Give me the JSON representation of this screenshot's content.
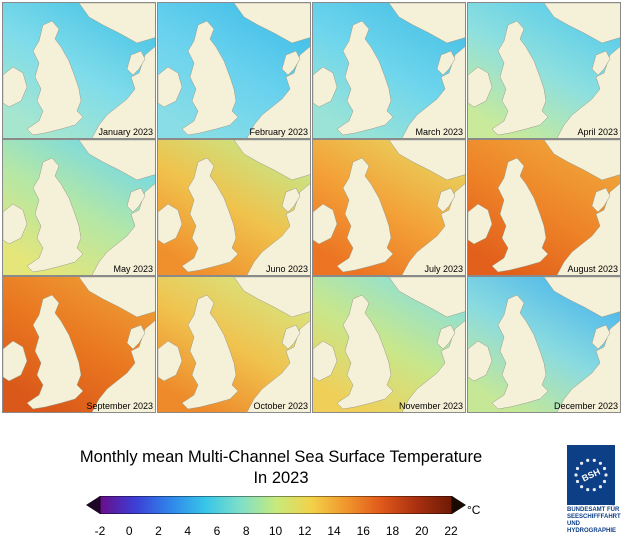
{
  "map": {
    "panels": [
      {
        "label": "January 2023",
        "sea": [
          "#4fc6e6",
          "#7fdcea",
          "#a6e6cf"
        ]
      },
      {
        "label": "February 2023",
        "sea": [
          "#45c0e8",
          "#6ad2ee",
          "#88dde6"
        ]
      },
      {
        "label": "March 2023",
        "sea": [
          "#4cc2e7",
          "#6fd6ec",
          "#9be3d6"
        ]
      },
      {
        "label": "April 2023",
        "sea": [
          "#5ccde9",
          "#8fe0de",
          "#c8ea9a"
        ]
      },
      {
        "label": "May 2023",
        "sea": [
          "#77d9e4",
          "#b4e7a6",
          "#e4e67a"
        ]
      },
      {
        "label": "Juno 2023",
        "sea": [
          "#c8e585",
          "#f0c24c",
          "#f0902c"
        ]
      },
      {
        "label": "July 2023",
        "sea": [
          "#e9cf5c",
          "#f3a238",
          "#ec7422"
        ]
      },
      {
        "label": "August 2023",
        "sea": [
          "#f0a43a",
          "#ee8428",
          "#e2601c"
        ]
      },
      {
        "label": "September 2023",
        "sea": [
          "#ee9a34",
          "#e9761f",
          "#d9581a"
        ]
      },
      {
        "label": "October 2023",
        "sea": [
          "#d8e47e",
          "#f0c24e",
          "#ee8a2a"
        ]
      },
      {
        "label": "November 2023",
        "sea": [
          "#8fe0d6",
          "#c8e78c",
          "#f0cf58"
        ]
      },
      {
        "label": "December 2023",
        "sea": [
          "#4fb8ea",
          "#8adbe0",
          "#c6e896"
        ]
      }
    ],
    "land_color": "#f5f0d8",
    "title_line1": "Monthly mean Multi-Channel Sea Surface Temperature",
    "title_line2": "In 2023"
  },
  "legend": {
    "ticks": [
      "-2",
      "0",
      "2",
      "4",
      "6",
      "8",
      "10",
      "12",
      "14",
      "16",
      "18",
      "20",
      "22"
    ],
    "unit": "°C",
    "colors": [
      "#6a0d8a",
      "#3d3ed6",
      "#2f86ea",
      "#38c6e8",
      "#7ee0c8",
      "#c6ea7c",
      "#f2d24a",
      "#f0962c",
      "#e0581a",
      "#a83010",
      "#6e1a06"
    ]
  },
  "logo": {
    "mark": "BSH",
    "lines": [
      "BUNDESAMT FÜR",
      "SEESCHIFFFAHRT",
      "UND",
      "HYDROGRAPHIE"
    ]
  }
}
